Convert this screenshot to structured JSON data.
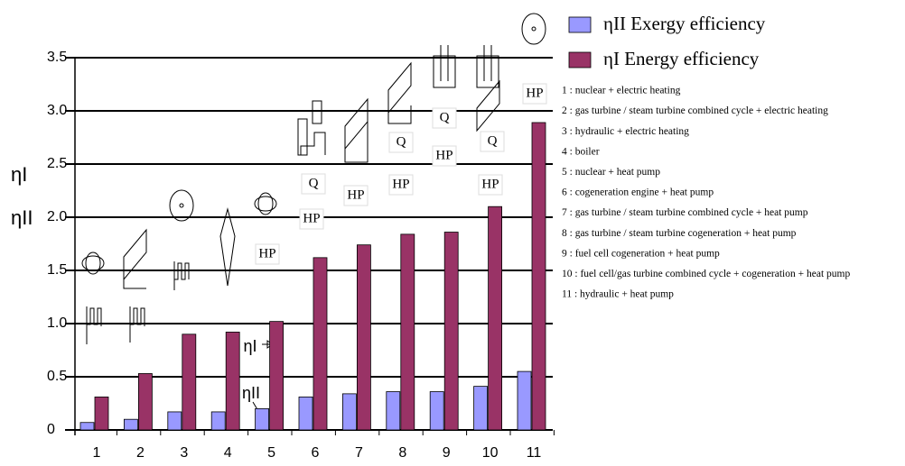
{
  "chart_data": {
    "type": "bar",
    "y_label": [
      "ηI",
      "ηII"
    ],
    "categories": [
      "1",
      "2",
      "3",
      "4",
      "5",
      "6",
      "7",
      "8",
      "9",
      "10",
      "11"
    ],
    "series": [
      {
        "name": "ηII Exergy efficiency",
        "color": "#9999ff",
        "values": [
          0.07,
          0.1,
          0.17,
          0.17,
          0.2,
          0.31,
          0.34,
          0.36,
          0.36,
          0.41,
          0.55
        ]
      },
      {
        "name": "ηI Energy efficiency",
        "color": "#993366",
        "values": [
          0.31,
          0.53,
          0.9,
          0.92,
          1.02,
          1.62,
          1.74,
          1.84,
          1.86,
          2.1,
          2.89
        ]
      }
    ],
    "ylim": [
      0,
      3.5
    ],
    "yticks": [
      0,
      0.5,
      {
        "value": 1,
        "label": "1.0"
      },
      1.5,
      {
        "value": 2,
        "label": "2.0"
      },
      2.5,
      {
        "value": 3,
        "label": "3.0"
      },
      3.5
    ],
    "grid": true,
    "legend": "top-right",
    "notes": [
      "1 : nuclear + electric heating",
      "2 : gas turbine / steam turbine combined cycle + electric heating",
      "3 : hydraulic + electric heating",
      "4 : boiler",
      "5 : nuclear + heat pump",
      "6 : cogeneration engine + heat pump",
      "7 : gas turbine / steam turbine combined cycle + heat pump",
      "8 : gas turbine / steam turbine cogeneration +  heat pump",
      "9 : fuel cell cogeneration + heat pump",
      "10 : fuel cell/gas turbine combined cycle + cogeneration + heat pump",
      "11 : hydraulic + heat pump"
    ],
    "annotations": [
      "HP",
      "HP",
      "HP",
      "HP",
      "HP",
      "HP",
      "HP",
      "Q",
      "Q",
      "Q",
      "Q",
      "ηI",
      "ηII"
    ]
  }
}
